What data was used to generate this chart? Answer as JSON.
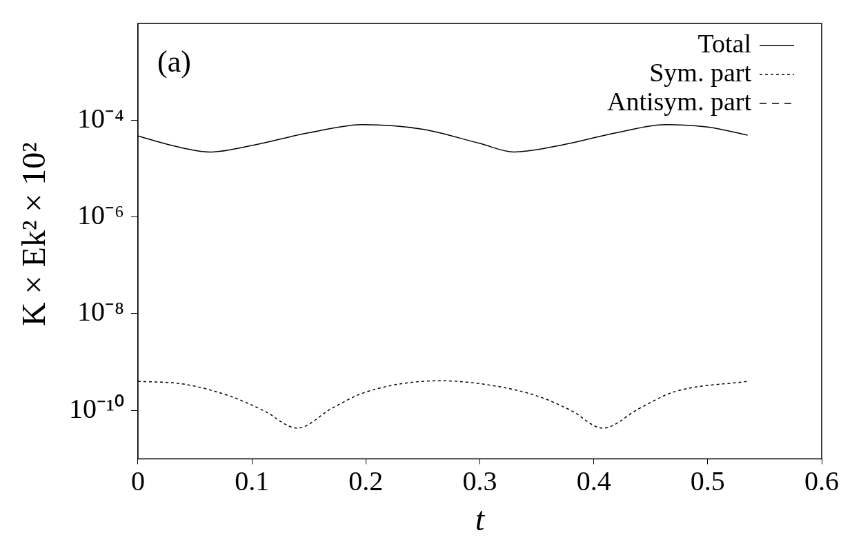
{
  "chart_data": {
    "type": "line",
    "xlabel": "t",
    "ylabel": "K × Ek² × 10²",
    "annotations": [
      "(a)"
    ],
    "log": "y",
    "grid": false,
    "legend": "top right",
    "marker": "none",
    "xlim": [
      0,
      0.6
    ],
    "xticks": [
      0,
      0.1,
      0.2,
      0.3,
      0.4,
      0.5,
      0.6
    ],
    "ylim": [
      1e-11,
      0.01
    ],
    "yticks": [
      {
        "value": 0.0001,
        "label": "10⁻⁴"
      },
      {
        "value": 1e-06,
        "label": "10⁻⁶"
      },
      {
        "value": 1e-08,
        "label": "10⁻⁸"
      },
      {
        "value": 1e-10,
        "label": "10⁻¹⁰"
      }
    ],
    "series": [
      {
        "name": "Total",
        "color": "#000000",
        "line_style": "solid",
        "x": [
          0,
          0.03,
          0.063,
          0.1,
          0.15,
          0.197,
          0.25,
          0.3,
          0.33,
          0.37,
          0.42,
          0.463,
          0.5,
          0.535
        ],
        "values": [
          4.7e-05,
          3e-05,
          2.2e-05,
          3e-05,
          5.5e-05,
          8.1e-05,
          6.5e-05,
          3.3e-05,
          2.2e-05,
          3e-05,
          5.5e-05,
          8.1e-05,
          7.2e-05,
          4.9e-05
        ]
      },
      {
        "name": "Sym. part",
        "color": "#000000",
        "line_style": "dotted",
        "x": [
          0,
          0.04,
          0.08,
          0.11,
          0.14,
          0.17,
          0.2,
          0.265,
          0.31,
          0.35,
          0.38,
          0.408,
          0.44,
          0.47,
          0.535
        ],
        "values": [
          4e-10,
          3.5e-10,
          2e-10,
          1e-10,
          4.3e-11,
          1.1e-10,
          2.4e-10,
          4.1e-10,
          3.3e-10,
          2e-10,
          1e-10,
          4.3e-11,
          1.1e-10,
          2.4e-10,
          4e-10
        ]
      },
      {
        "name": "Antisym. part",
        "color": "#000000",
        "line_style": "dashed"
      }
    ]
  }
}
